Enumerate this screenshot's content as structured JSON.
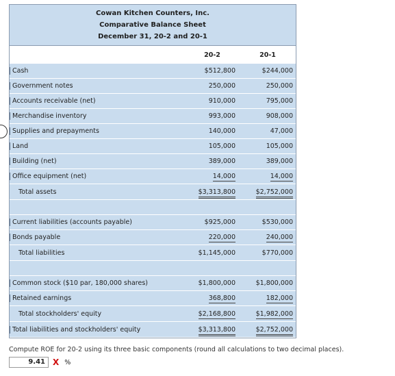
{
  "header": {
    "company": "Cowan Kitchen Counters, Inc.",
    "title": "Comparative Balance Sheet",
    "date": "December 31, 20-2 and 20-1"
  },
  "columns": [
    "20-2",
    "20-1"
  ],
  "assets": [
    {
      "label": "Cash",
      "y2": "$512,800",
      "y1": "$244,000"
    },
    {
      "label": "Government notes",
      "y2": "250,000",
      "y1": "250,000"
    },
    {
      "label": "Accounts receivable (net)",
      "y2": "910,000",
      "y1": "795,000"
    },
    {
      "label": "Merchandise inventory",
      "y2": "993,000",
      "y1": "908,000"
    },
    {
      "label": "Supplies and prepayments",
      "y2": "140,000",
      "y1": "47,000"
    },
    {
      "label": "Land",
      "y2": "105,000",
      "y1": "105,000"
    },
    {
      "label": "Building (net)",
      "y2": "389,000",
      "y1": "389,000"
    },
    {
      "label": "Office equipment (net)",
      "y2": "14,000",
      "y1": "14,000"
    }
  ],
  "total_assets": {
    "label": "Total assets",
    "y2": "$3,313,800",
    "y1": "$2,752,000"
  },
  "liabilities": [
    {
      "label": "Current liabilities (accounts payable)",
      "y2": "$925,000",
      "y1": "$530,000"
    },
    {
      "label": "Bonds payable",
      "y2": "220,000",
      "y1": "240,000"
    }
  ],
  "total_liabilities": {
    "label": "Total liabilities",
    "y2": "$1,145,000",
    "y1": "$770,000"
  },
  "equity": [
    {
      "label": "Common stock ($10 par, 180,000 shares)",
      "y2": "$1,800,000",
      "y1": "$1,800,000"
    },
    {
      "label": "Retained earnings",
      "y2": "368,800",
      "y1": "182,000"
    }
  ],
  "total_equity": {
    "label": "Total stockholders' equity",
    "y2": "$2,168,800",
    "y1": "$1,982,000"
  },
  "total_liab_equity": {
    "label": "Total liabilities and stockholders' equity",
    "y2": "$3,313,800",
    "y1": "$2,752,000"
  },
  "question": "Compute ROE for 20-2 using its three basic components (round all calculations to two decimal places).",
  "answer": {
    "value": "9.41",
    "mark": "X",
    "unit": "%"
  }
}
